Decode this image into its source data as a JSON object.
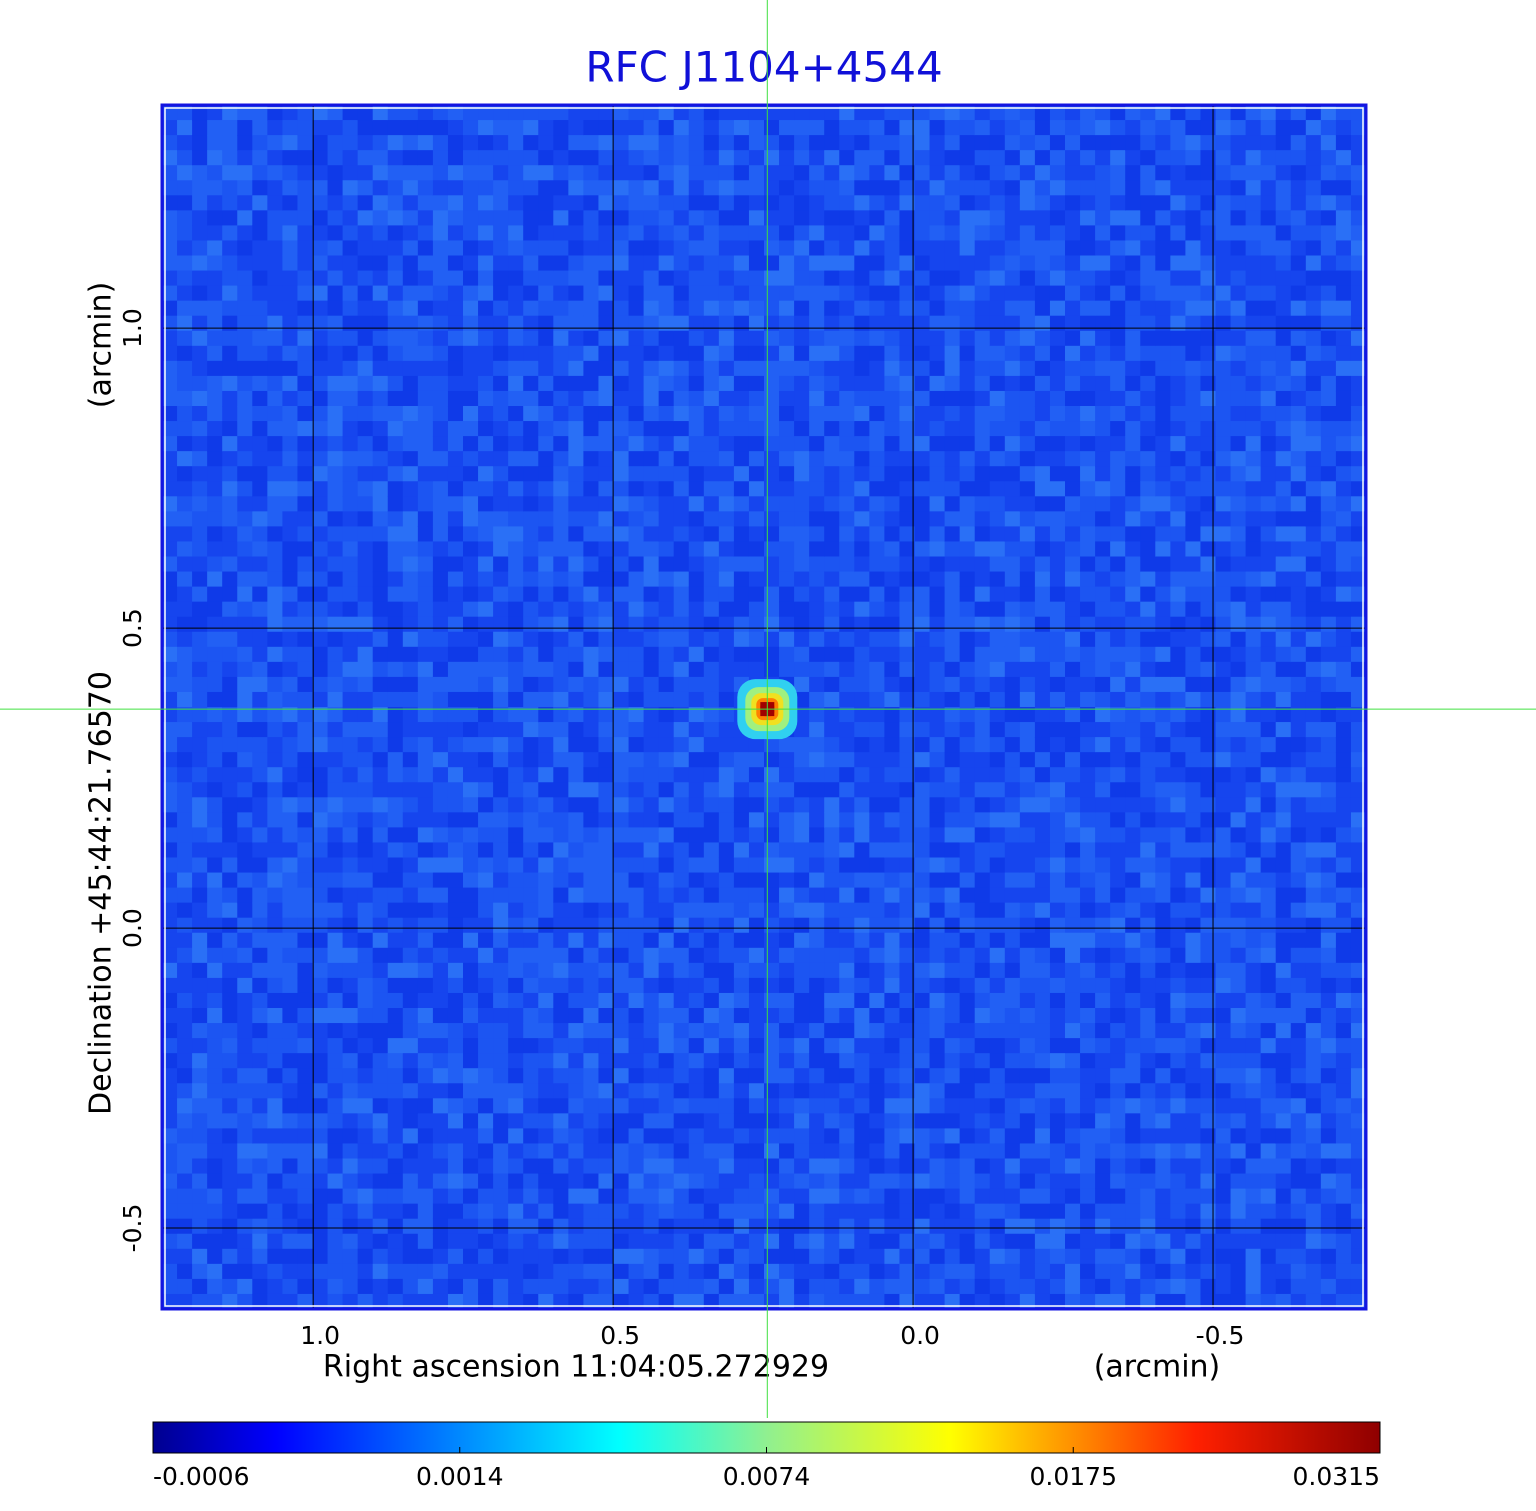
{
  "chart_data": {
    "type": "image",
    "title": "RFC J1104+4544",
    "x_label": "Right ascension  11:04:05.272929",
    "x_unit": "(arcmin)",
    "y_label": "Declination  +45:44:21.76570",
    "y_unit": "(arcmin)",
    "xlim": [
      1.252,
      -0.755
    ],
    "ylim": [
      -0.635,
      1.372
    ],
    "xticks": [
      {
        "value": 1,
        "label": "1.0"
      },
      0.5,
      {
        "value": 0,
        "label": "0.0"
      },
      -0.5
    ],
    "yticks": [
      {
        "value": 1,
        "label": "1.0"
      },
      0.5,
      {
        "value": 0,
        "label": "0.0"
      },
      -0.5
    ],
    "grid": true,
    "source": {
      "x": 0.243,
      "y": 0.365,
      "peak": 0.0315
    },
    "colorbar": {
      "lim": [
        -0.0006,
        0.0315
      ],
      "ticks": [
        -0.0006,
        0.0014,
        0.0074,
        0.0175,
        0.0315
      ]
    }
  }
}
